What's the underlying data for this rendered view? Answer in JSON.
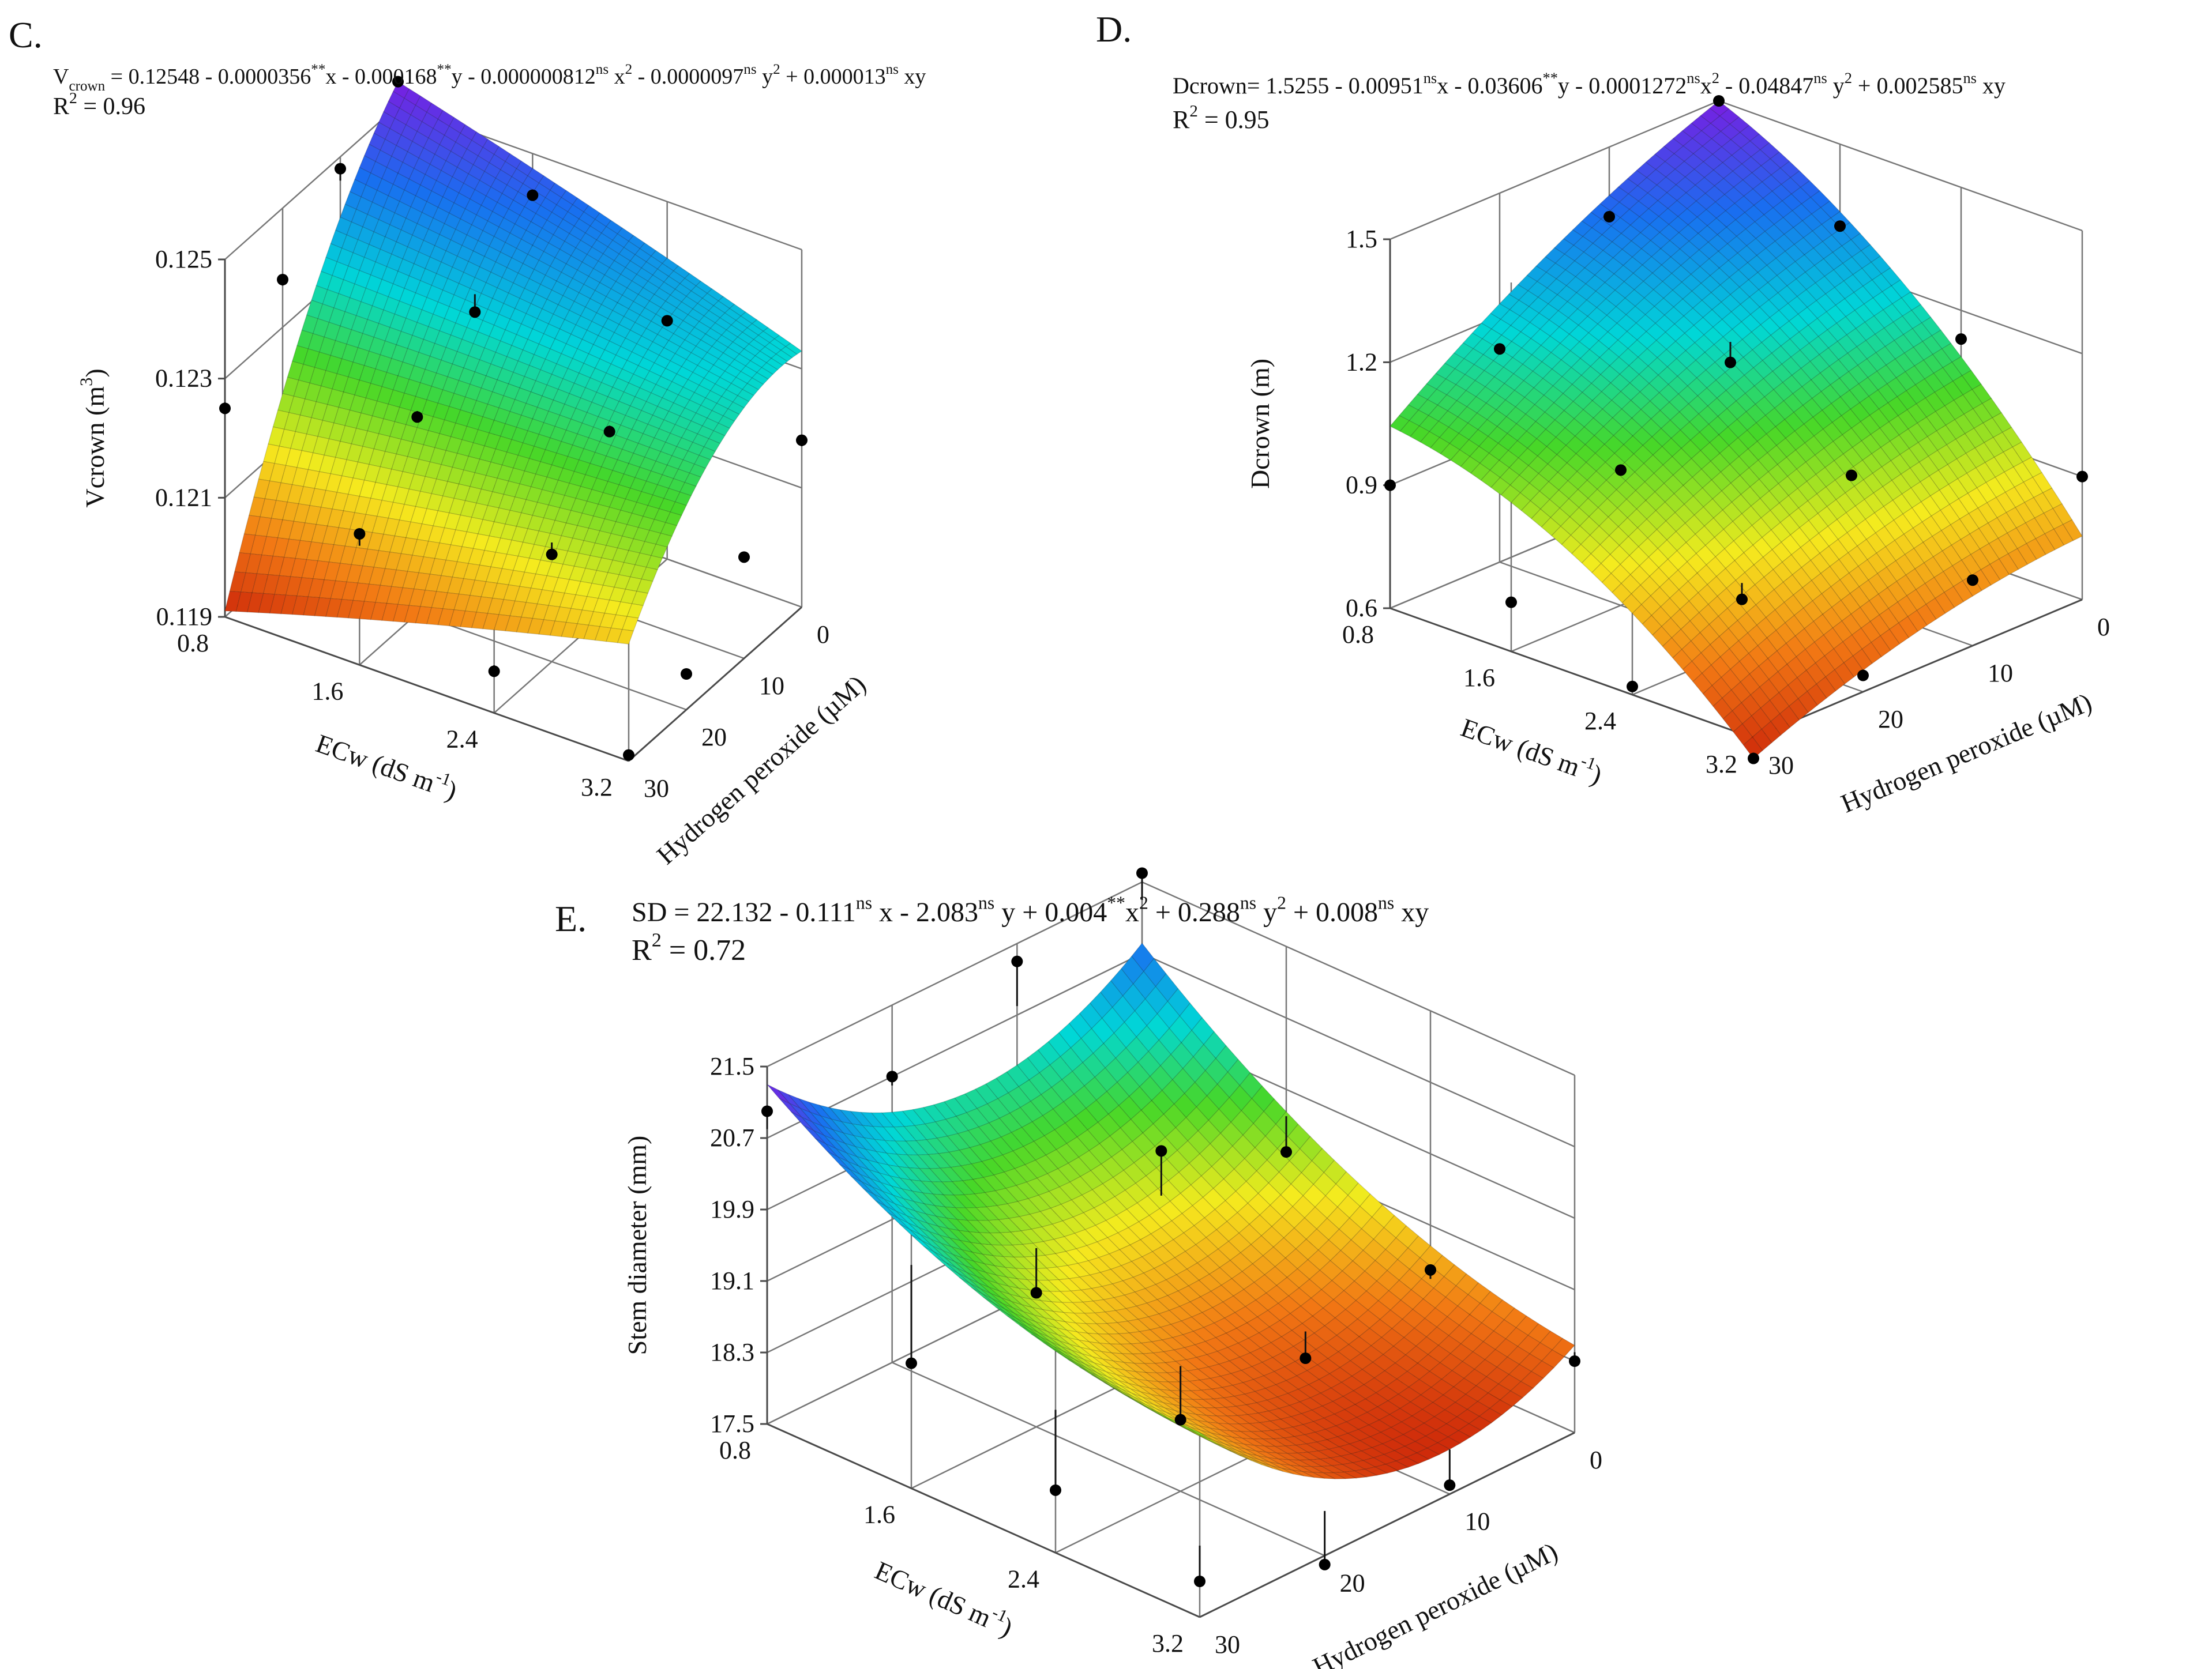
{
  "chart_data": [
    {
      "type": "surface3d",
      "panel_label": "C.",
      "equation": {
        "parts": [
          {
            "t": "V",
            "s": ""
          },
          {
            "t": "crown",
            "s": "sub"
          },
          {
            "t": " = 0.12548 - 0.0000356",
            "s": ""
          },
          {
            "t": "**",
            "s": "sup"
          },
          {
            "t": "x - 0.000168",
            "s": ""
          },
          {
            "t": "**",
            "s": "sup"
          },
          {
            "t": "y - 0.000000812",
            "s": ""
          },
          {
            "t": "ns",
            "s": "sup"
          },
          {
            "t": " x",
            "s": ""
          },
          {
            "t": "2",
            "s": "sup"
          },
          {
            "t": " - 0.0000097",
            "s": ""
          },
          {
            "t": "ns",
            "s": "sup"
          },
          {
            "t": " y",
            "s": ""
          },
          {
            "t": "2",
            "s": "sup"
          },
          {
            "t": " + 0.000013",
            "s": ""
          },
          {
            "t": "ns",
            "s": "sup"
          },
          {
            "t": " xy",
            "s": ""
          }
        ],
        "coefficients": {
          "b0": 0.12548,
          "x": -3.56e-05,
          "y": -0.000168,
          "x2": -8.12e-07,
          "y2": -9.7e-06,
          "xy": 1.3e-05
        }
      },
      "r2_parts": [
        {
          "t": "R",
          "s": ""
        },
        {
          "t": "2",
          "s": "sup"
        },
        {
          "t": " = 0.96",
          "s": ""
        }
      ],
      "zlabel_parts": [
        {
          "t": "Vcrown (m",
          "s": ""
        },
        {
          "t": "3",
          "s": "sup"
        },
        {
          "t": ")",
          "s": ""
        }
      ],
      "xlabel_parts": [
        {
          "t": "ECw (dS m",
          "s": ""
        },
        {
          "t": "-1",
          "s": "sup"
        },
        {
          "t": ")",
          "s": ""
        }
      ],
      "ylabel_parts": [
        {
          "t": "Hydrogen peroxide (µM)",
          "s": ""
        }
      ],
      "z_ticks": [
        "0.119",
        "0.121",
        "0.123",
        "0.125"
      ],
      "x_ticks": [
        "0.8",
        "1.6",
        "2.4",
        "3.2"
      ],
      "y_ticks": [
        "0",
        "10",
        "20",
        "30"
      ],
      "ylim": [
        0.119,
        0.1256
      ],
      "points": [
        {
          "x": 0.8,
          "y": 0,
          "z": 0.1254,
          "fit": 0.1254
        },
        {
          "x": 0.8,
          "y": 10,
          "z": 0.1248,
          "fit": 0.1246
        },
        {
          "x": 0.8,
          "y": 20,
          "z": 0.1238,
          "fit": 0.1237
        },
        {
          "x": 0.8,
          "y": 30,
          "z": 0.1225,
          "fit": 0.1226
        },
        {
          "x": 1.6,
          "y": 0,
          "z": 0.1243,
          "fit": 0.1243
        },
        {
          "x": 1.6,
          "y": 10,
          "z": 0.1232,
          "fit": 0.1235
        },
        {
          "x": 1.6,
          "y": 20,
          "z": 0.1223,
          "fit": 0.1224
        },
        {
          "x": 1.6,
          "y": 30,
          "z": 0.1212,
          "fit": 0.121
        },
        {
          "x": 2.4,
          "y": 0,
          "z": 0.123,
          "fit": 0.123
        },
        {
          "x": 2.4,
          "y": 10,
          "z": 0.122,
          "fit": 0.1221
        },
        {
          "x": 2.4,
          "y": 20,
          "z": 0.1208,
          "fit": 0.121
        },
        {
          "x": 2.4,
          "y": 30,
          "z": 0.1197,
          "fit": 0.1198
        },
        {
          "x": 3.2,
          "y": 0,
          "z": 0.1218,
          "fit": 0.1217
        },
        {
          "x": 3.2,
          "y": 10,
          "z": 0.1207,
          "fit": 0.1207
        },
        {
          "x": 3.2,
          "y": 20,
          "z": 0.1196,
          "fit": 0.1196
        },
        {
          "x": 3.2,
          "y": 30,
          "z": 0.1191,
          "fit": 0.1191
        }
      ]
    },
    {
      "type": "surface3d",
      "panel_label": "D.",
      "equation": {
        "parts": [
          {
            "t": "Dcrown= 1.5255 - 0.00951",
            "s": ""
          },
          {
            "t": "ns",
            "s": "sup"
          },
          {
            "t": "x - 0.03606",
            "s": ""
          },
          {
            "t": "**",
            "s": "sup"
          },
          {
            "t": "y - 0.0001272",
            "s": ""
          },
          {
            "t": "ns",
            "s": "sup"
          },
          {
            "t": "x",
            "s": ""
          },
          {
            "t": "2",
            "s": "sup"
          },
          {
            "t": " - 0.04847",
            "s": ""
          },
          {
            "t": "ns",
            "s": "sup"
          },
          {
            "t": " y",
            "s": ""
          },
          {
            "t": "2",
            "s": "sup"
          },
          {
            "t": " + 0.002585",
            "s": ""
          },
          {
            "t": "ns",
            "s": "sup"
          },
          {
            "t": " xy",
            "s": ""
          }
        ],
        "coefficients": {
          "b0": 1.5255,
          "x": -0.00951,
          "y": -0.03606,
          "x2": -0.0001272,
          "y2": -0.04847,
          "xy": 0.002585
        }
      },
      "r2_parts": [
        {
          "t": "R",
          "s": ""
        },
        {
          "t": "2",
          "s": "sup"
        },
        {
          "t": " = 0.95",
          "s": ""
        }
      ],
      "zlabel_parts": [
        {
          "t": "Dcrown (m)",
          "s": ""
        }
      ],
      "xlabel_parts": [
        {
          "t": "ECw (dS m",
          "s": ""
        },
        {
          "t": "-1",
          "s": "sup"
        },
        {
          "t": ")",
          "s": ""
        }
      ],
      "ylabel_parts": [
        {
          "t": "Hydrogen peroxide (µM)",
          "s": ""
        }
      ],
      "z_ticks": [
        "0.6",
        "0.9",
        "1.2",
        "1.5"
      ],
      "x_ticks": [
        "0.8",
        "1.6",
        "2.4",
        "3.2"
      ],
      "y_ticks": [
        "0",
        "10",
        "20",
        "30"
      ],
      "ylim": [
        0.6,
        1.55
      ],
      "points": [
        {
          "x": 0.8,
          "y": 0,
          "z": 1.5,
          "fit": 1.5
        },
        {
          "x": 0.8,
          "y": 10,
          "z": 1.33,
          "fit": 1.33
        },
        {
          "x": 0.8,
          "y": 20,
          "z": 1.12,
          "fit": 1.12
        },
        {
          "x": 0.8,
          "y": 30,
          "z": 0.9,
          "fit": 0.9
        },
        {
          "x": 1.6,
          "y": 0,
          "z": 1.3,
          "fit": 1.31
        },
        {
          "x": 1.6,
          "y": 10,
          "z": 1.08,
          "fit": 1.13
        },
        {
          "x": 1.6,
          "y": 20,
          "z": 0.93,
          "fit": 0.93
        },
        {
          "x": 1.6,
          "y": 30,
          "z": 0.72,
          "fit": 0.72
        },
        {
          "x": 2.4,
          "y": 0,
          "z": 1.13,
          "fit": 1.13
        },
        {
          "x": 2.4,
          "y": 10,
          "z": 0.91,
          "fit": 0.91
        },
        {
          "x": 2.4,
          "y": 20,
          "z": 0.72,
          "fit": 0.76
        },
        {
          "x": 2.4,
          "y": 30,
          "z": 0.62,
          "fit": 0.62
        },
        {
          "x": 3.2,
          "y": 0,
          "z": 0.9,
          "fit": 0.89
        },
        {
          "x": 3.2,
          "y": 10,
          "z": 0.76,
          "fit": 0.76
        },
        {
          "x": 3.2,
          "y": 20,
          "z": 0.64,
          "fit": 0.64
        },
        {
          "x": 3.2,
          "y": 30,
          "z": 0.55,
          "fit": 0.55
        }
      ]
    },
    {
      "type": "surface3d",
      "panel_label": "E.",
      "equation": {
        "parts": [
          {
            "t": "SD = 22.132 - 0.111",
            "s": ""
          },
          {
            "t": "ns",
            "s": "sup"
          },
          {
            "t": " x - 2.083",
            "s": ""
          },
          {
            "t": "ns",
            "s": "sup"
          },
          {
            "t": " y + 0.004",
            "s": ""
          },
          {
            "t": "**",
            "s": "sup"
          },
          {
            "t": "x",
            "s": ""
          },
          {
            "t": "2",
            "s": "sup"
          },
          {
            "t": " + 0.288",
            "s": ""
          },
          {
            "t": "ns",
            "s": "sup"
          },
          {
            "t": " y",
            "s": ""
          },
          {
            "t": "2",
            "s": "sup"
          },
          {
            "t": " + 0.008",
            "s": ""
          },
          {
            "t": "ns",
            "s": "sup"
          },
          {
            "t": " xy",
            "s": ""
          }
        ],
        "coefficients": {
          "b0": 22.132,
          "x": -0.111,
          "y": -2.083,
          "x2": 0.004,
          "y2": 0.288,
          "xy": 0.008
        }
      },
      "r2_parts": [
        {
          "t": "R",
          "s": ""
        },
        {
          "t": "2",
          "s": "sup"
        },
        {
          "t": " = 0.72",
          "s": ""
        }
      ],
      "zlabel_parts": [
        {
          "t": "Stem diameter (mm)",
          "s": ""
        }
      ],
      "xlabel_parts": [
        {
          "t": "ECw (dS m",
          "s": ""
        },
        {
          "t": "-1",
          "s": "sup"
        },
        {
          "t": ")",
          "s": ""
        }
      ],
      "ylabel_parts": [
        {
          "t": "Hydrogen peroxide (µM)",
          "s": ""
        }
      ],
      "z_ticks": [
        "17.5",
        "18.3",
        "19.1",
        "19.9",
        "20.7",
        "21.5"
      ],
      "x_ticks": [
        "0.8",
        "1.6",
        "2.4",
        "3.2"
      ],
      "y_ticks": [
        "0",
        "10",
        "20",
        "30"
      ],
      "ylim": [
        17.5,
        21.5
      ],
      "points": [
        {
          "x": 0.8,
          "y": 0,
          "z": 21.6,
          "fit": 21.3
        },
        {
          "x": 0.8,
          "y": 10,
          "z": 21.3,
          "fit": 20.8
        },
        {
          "x": 0.8,
          "y": 20,
          "z": 20.7,
          "fit": 20.6
        },
        {
          "x": 0.8,
          "y": 30,
          "z": 21.0,
          "fit": 20.8
        },
        {
          "x": 1.6,
          "y": 0,
          "z": 19.2,
          "fit": 19.6
        },
        {
          "x": 1.6,
          "y": 10,
          "z": 19.9,
          "fit": 19.4
        },
        {
          "x": 1.6,
          "y": 20,
          "z": 19.0,
          "fit": 19.5
        },
        {
          "x": 1.6,
          "y": 30,
          "z": 18.9,
          "fit": 20.0
        },
        {
          "x": 2.4,
          "y": 0,
          "z": 18.6,
          "fit": 18.5
        },
        {
          "x": 2.4,
          "y": 10,
          "z": 18.3,
          "fit": 18.6
        },
        {
          "x": 2.4,
          "y": 20,
          "z": 18.3,
          "fit": 18.9
        },
        {
          "x": 2.4,
          "y": 30,
          "z": 18.2,
          "fit": 19.1
        },
        {
          "x": 3.2,
          "y": 0,
          "z": 18.3,
          "fit": 18.4
        },
        {
          "x": 3.2,
          "y": 10,
          "z": 17.6,
          "fit": 18.0
        },
        {
          "x": 3.2,
          "y": 20,
          "z": 17.4,
          "fit": 18.0
        },
        {
          "x": 3.2,
          "y": 30,
          "z": 17.9,
          "fit": 18.3
        }
      ]
    }
  ]
}
